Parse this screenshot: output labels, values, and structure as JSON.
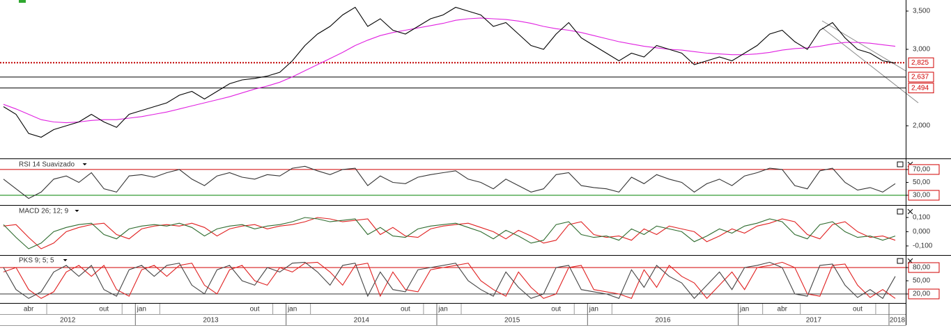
{
  "chart_data": [
    {
      "type": "line",
      "ylim": [
        1573,
        3645
      ],
      "yticks": [
        {
          "value": 2000,
          "label": "2,000"
        },
        {
          "value": 3000,
          "label": "3,000"
        },
        {
          "value": 3500,
          "label": "3,500"
        }
      ],
      "levels": [
        {
          "value": 2825,
          "label": "2,825",
          "color": "#c00000",
          "style": "dotted"
        },
        {
          "value": 2637,
          "label": "2,637",
          "color": "#000000",
          "style": "solid"
        },
        {
          "value": 2494,
          "label": "2,494",
          "color": "#000000",
          "style": "solid"
        }
      ],
      "series": [
        {
          "color": "#e020e0",
          "values": [
            2280,
            2220,
            2150,
            2080,
            2050,
            2040,
            2050,
            2070,
            2080,
            2080,
            2100,
            2120,
            2150,
            2180,
            2220,
            2260,
            2300,
            2340,
            2380,
            2430,
            2480,
            2520,
            2570,
            2640,
            2720,
            2800,
            2880,
            2960,
            3050,
            3120,
            3180,
            3220,
            3250,
            3280,
            3310,
            3340,
            3380,
            3400,
            3410,
            3400,
            3390,
            3370,
            3340,
            3300,
            3270,
            3250,
            3220,
            3180,
            3140,
            3100,
            3070,
            3040,
            3020,
            3000,
            2990,
            2970,
            2950,
            2940,
            2930,
            2930,
            2940,
            2960,
            2990,
            3010,
            3020,
            3040,
            3070,
            3090,
            3090,
            3080,
            3060,
            3040
          ]
        },
        {
          "color": "#000000",
          "values": [
            2250,
            2150,
            1900,
            1850,
            1950,
            2000,
            2050,
            2150,
            2050,
            1980,
            2150,
            2200,
            2250,
            2300,
            2400,
            2450,
            2350,
            2450,
            2550,
            2600,
            2620,
            2650,
            2700,
            2850,
            3050,
            3200,
            3300,
            3450,
            3550,
            3300,
            3400,
            3250,
            3200,
            3300,
            3400,
            3450,
            3550,
            3500,
            3450,
            3300,
            3350,
            3200,
            3050,
            3000,
            3200,
            3350,
            3150,
            3050,
            2950,
            2850,
            2950,
            2900,
            3050,
            3000,
            2950,
            2800,
            2850,
            2900,
            2850,
            2950,
            3050,
            3200,
            3250,
            3100,
            3000,
            3250,
            3350,
            3150,
            3000,
            2950,
            2850,
            2820
          ]
        }
      ]
    },
    {
      "type": "line",
      "title": "RSI 14 Suavizado",
      "ylim": [
        20.3,
        85
      ],
      "yticks": [
        {
          "value": 30,
          "label": "30,00"
        },
        {
          "value": 50,
          "label": "50,00"
        },
        {
          "value": 70,
          "label": "70,00"
        }
      ],
      "levels": [
        {
          "value": 70,
          "color": "#d00000",
          "style": "solid"
        },
        {
          "value": 30,
          "color": "#008000",
          "style": "solid"
        }
      ],
      "series": [
        {
          "color": "#333333",
          "values": [
            55,
            40,
            25,
            35,
            55,
            60,
            50,
            65,
            40,
            35,
            60,
            62,
            58,
            65,
            70,
            55,
            45,
            60,
            65,
            58,
            55,
            62,
            60,
            72,
            75,
            68,
            62,
            70,
            72,
            45,
            60,
            50,
            48,
            58,
            62,
            65,
            68,
            55,
            50,
            40,
            55,
            45,
            35,
            40,
            62,
            65,
            45,
            42,
            40,
            35,
            58,
            48,
            62,
            55,
            50,
            35,
            48,
            55,
            45,
            60,
            65,
            72,
            70,
            45,
            40,
            68,
            72,
            50,
            38,
            42,
            35,
            48
          ]
        }
      ]
    },
    {
      "type": "line",
      "title": "MACD 26; 12; 9",
      "ylim": [
        -0.159,
        0.178
      ],
      "yticks": [
        {
          "value": -0.1,
          "label": "-0,100"
        },
        {
          "value": 0,
          "label": "0,000"
        },
        {
          "value": 0.1,
          "label": "0,100"
        }
      ],
      "series": [
        {
          "color": "#e02020",
          "values": [
            0.04,
            0.05,
            -0.04,
            -0.12,
            -0.08,
            0.0,
            0.03,
            0.05,
            0.06,
            -0.02,
            -0.05,
            0.02,
            0.04,
            0.05,
            0.04,
            0.06,
            0.03,
            -0.03,
            0.02,
            0.04,
            0.05,
            0.02,
            0.04,
            0.05,
            0.07,
            0.1,
            0.09,
            0.07,
            0.08,
            0.09,
            -0.02,
            0.03,
            -0.03,
            -0.04,
            0.02,
            0.04,
            0.05,
            0.06,
            0.03,
            0.0,
            -0.05,
            0.01,
            -0.03,
            -0.08,
            -0.06,
            0.05,
            0.07,
            -0.02,
            -0.04,
            -0.03,
            -0.06,
            0.02,
            -0.02,
            0.04,
            0.02,
            0.0,
            -0.07,
            -0.03,
            0.02,
            -0.01,
            0.04,
            0.06,
            0.09,
            0.07,
            -0.02,
            -0.05,
            0.05,
            0.07,
            0.0,
            -0.04,
            -0.03,
            -0.06
          ]
        },
        {
          "color": "#2e6b2e",
          "values": [
            0.05,
            -0.04,
            -0.12,
            -0.08,
            0.0,
            0.03,
            0.05,
            0.06,
            -0.02,
            -0.05,
            0.02,
            0.04,
            0.05,
            0.04,
            0.06,
            0.03,
            -0.03,
            0.02,
            0.04,
            0.05,
            0.02,
            0.04,
            0.05,
            0.07,
            0.1,
            0.09,
            0.07,
            0.08,
            0.09,
            -0.02,
            0.03,
            -0.03,
            -0.04,
            0.02,
            0.04,
            0.05,
            0.06,
            0.03,
            0.0,
            -0.05,
            0.01,
            -0.03,
            -0.08,
            -0.06,
            0.05,
            0.07,
            -0.02,
            -0.04,
            -0.03,
            -0.06,
            0.02,
            -0.02,
            0.04,
            0.02,
            0.0,
            -0.07,
            -0.03,
            0.02,
            -0.01,
            0.04,
            0.06,
            0.09,
            0.07,
            -0.02,
            -0.05,
            0.05,
            0.07,
            0.0,
            -0.04,
            -0.03,
            -0.06,
            -0.03
          ]
        }
      ]
    },
    {
      "type": "line",
      "title": "PKS 9; 5; 5",
      "ylim": [
        -0.5,
        106.9
      ],
      "yticks": [
        {
          "value": 20,
          "label": "20,00"
        },
        {
          "value": 50,
          "label": "50,00"
        },
        {
          "value": 80,
          "label": "80,00"
        }
      ],
      "levels": [
        {
          "value": 80,
          "color": "#d00000",
          "style": "solid"
        },
        {
          "value": 20,
          "color": "#333333",
          "style": "solid"
        }
      ],
      "series": [
        {
          "color": "#e02020",
          "values": [
            70,
            80,
            30,
            10,
            25,
            70,
            85,
            60,
            85,
            30,
            15,
            75,
            85,
            60,
            85,
            90,
            40,
            20,
            75,
            85,
            50,
            40,
            80,
            70,
            90,
            92,
            70,
            40,
            85,
            90,
            15,
            70,
            30,
            25,
            75,
            80,
            85,
            90,
            50,
            30,
            15,
            70,
            35,
            10,
            20,
            80,
            85,
            30,
            25,
            20,
            10,
            75,
            35,
            85,
            60,
            45,
            10,
            40,
            70,
            30,
            80,
            85,
            92,
            80,
            20,
            15,
            85,
            88,
            40,
            12,
            30,
            10
          ]
        },
        {
          "color": "#444444",
          "values": [
            80,
            30,
            10,
            25,
            70,
            85,
            60,
            85,
            30,
            15,
            75,
            85,
            60,
            85,
            90,
            40,
            20,
            75,
            85,
            50,
            40,
            80,
            70,
            90,
            92,
            70,
            40,
            85,
            90,
            15,
            70,
            30,
            25,
            75,
            80,
            85,
            90,
            50,
            30,
            15,
            70,
            35,
            10,
            20,
            80,
            85,
            30,
            25,
            20,
            10,
            75,
            35,
            85,
            60,
            45,
            10,
            40,
            70,
            30,
            80,
            85,
            92,
            80,
            20,
            15,
            85,
            88,
            40,
            12,
            30,
            10,
            60
          ]
        }
      ]
    }
  ],
  "time_axis": {
    "months": [
      null,
      null,
      "abr",
      null,
      null,
      null,
      null,
      null,
      "out",
      null,
      null,
      "jan",
      null,
      null,
      null,
      null,
      null,
      null,
      null,
      null,
      "out",
      null,
      null,
      "jan",
      null,
      null,
      null,
      null,
      null,
      null,
      null,
      null,
      "out",
      null,
      null,
      "jan",
      null,
      null,
      null,
      null,
      null,
      null,
      null,
      null,
      "out",
      null,
      null,
      "jan",
      null,
      null,
      null,
      null,
      null,
      null,
      null,
      null,
      null,
      null,
      null,
      "jan",
      null,
      null,
      "abr",
      null,
      null,
      null,
      null,
      null,
      "out",
      null,
      null,
      null
    ],
    "years": [
      "2012",
      "2013",
      "2014",
      "2015",
      "2016",
      "2017",
      "2018"
    ]
  }
}
